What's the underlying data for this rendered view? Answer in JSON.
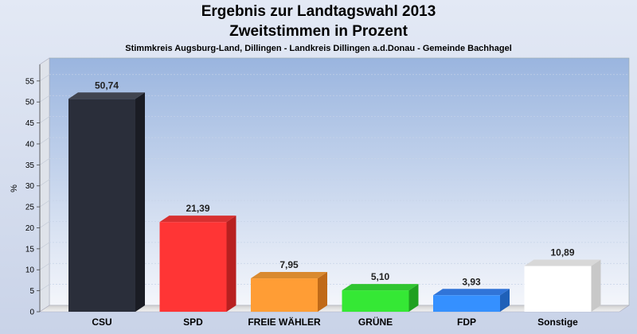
{
  "chart_data": {
    "type": "bar",
    "title": "Ergebnis zur Landtagswahl 2013",
    "title2": "Zweitstimmen in Prozent",
    "subtitle": "Stimmkreis Augsburg-Land, Dillingen - Landkreis Dillingen a.d.Donau - Gemeinde Bachhagel",
    "ylabel": "%",
    "xlabel": "",
    "ylim": [
      0,
      58
    ],
    "yticks": [
      0,
      5,
      10,
      15,
      20,
      25,
      30,
      35,
      40,
      45,
      50,
      55
    ],
    "grid": true,
    "categories": [
      "CSU",
      "SPD",
      "FREIE WÄHLER",
      "GRÜNE",
      "FDP",
      "Sonstige"
    ],
    "values": [
      50.74,
      21.39,
      7.95,
      5.1,
      3.93,
      10.89
    ],
    "value_labels": [
      "50,74",
      "21,39",
      "7,95",
      "5,10",
      "3,93",
      "10,89"
    ],
    "colors": [
      "#2a2e3a",
      "#ff3535",
      "#ff9d35",
      "#35e835",
      "#3590ff",
      "#ffffff"
    ],
    "side_colors": [
      "#1a1c24",
      "#b82020",
      "#c06a18",
      "#20a020",
      "#1f60b8",
      "#c8c8c8"
    ],
    "top_colors": [
      "#40444f",
      "#d83030",
      "#d98a30",
      "#30c530",
      "#3074d8",
      "#d8d8d8"
    ]
  }
}
